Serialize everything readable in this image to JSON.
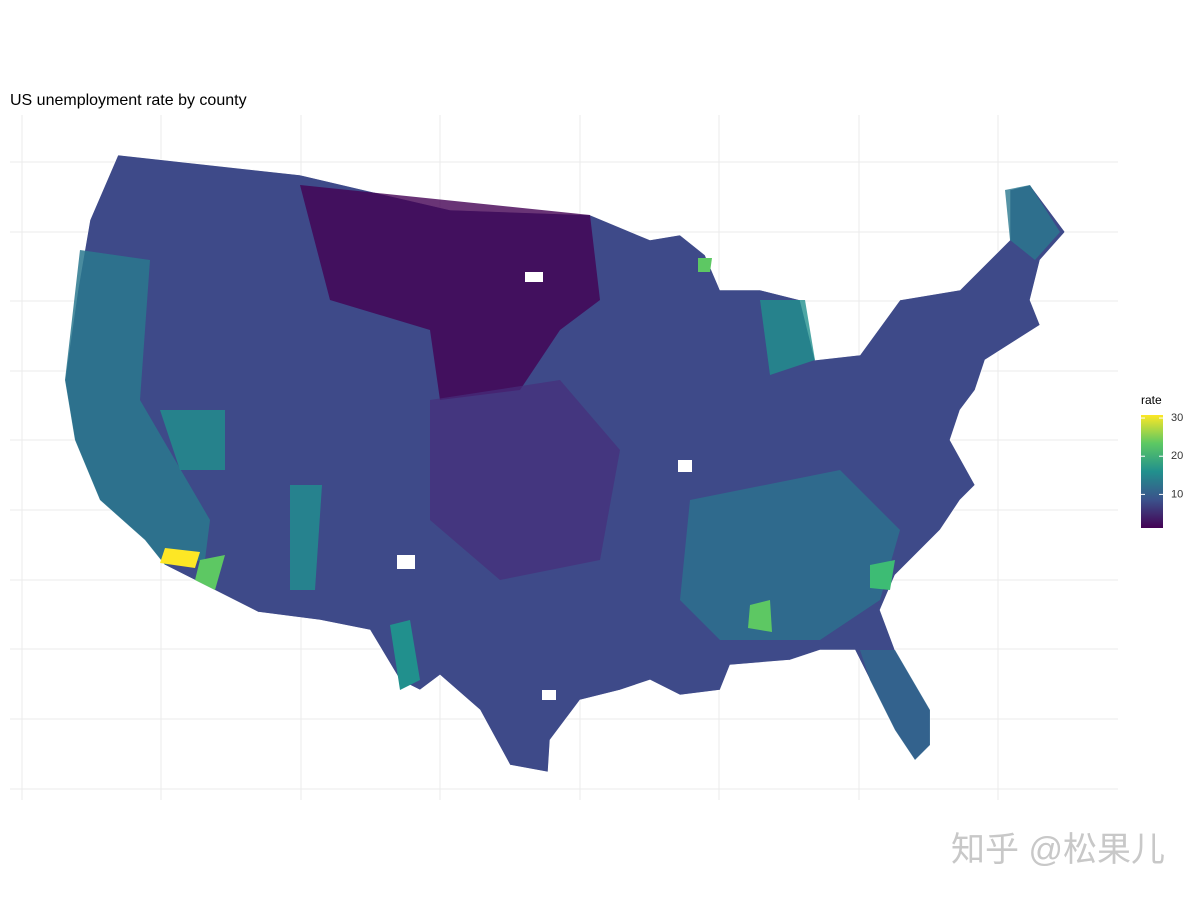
{
  "chart_data": {
    "type": "choropleth",
    "title": "US unemployment rate by county",
    "legend": {
      "title": "rate",
      "limits": [
        1.2,
        30.8
      ],
      "ticks": [
        10,
        20,
        30
      ],
      "colors": [
        "#440154",
        "#3b528b",
        "#21908d",
        "#5dc863",
        "#fde725"
      ]
    }
  },
  "watermark": "知乎 @松果儿"
}
